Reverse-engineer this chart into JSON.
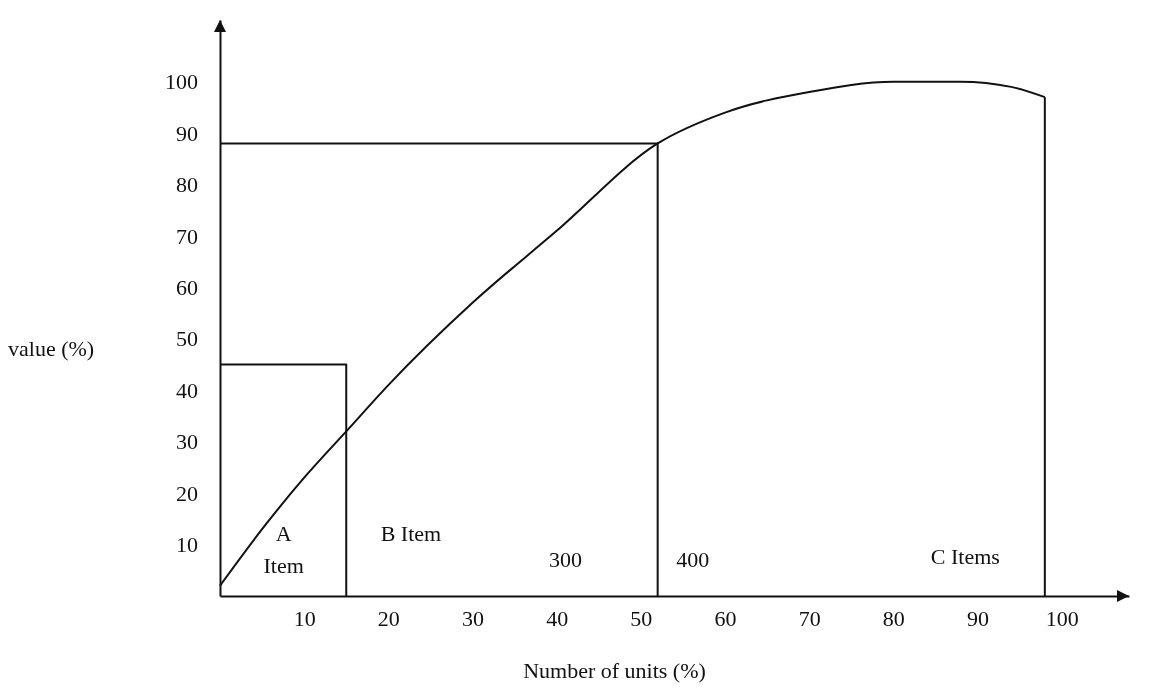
{
  "chart_data": {
    "type": "line",
    "xlabel": "Number of units (%)",
    "ylabel": "value (%)",
    "xlim": [
      0,
      108
    ],
    "ylim": [
      0,
      112
    ],
    "xticks": [
      10,
      20,
      30,
      40,
      50,
      60,
      70,
      80,
      90,
      100
    ],
    "yticks": [
      10,
      20,
      30,
      40,
      50,
      60,
      70,
      80,
      90,
      100
    ],
    "grid": false,
    "marker": "none",
    "line_style": "solid",
    "series": [
      {
        "color": "#111111",
        "x": [
          0,
          5,
          10,
          15,
          20,
          30,
          40,
          52,
          60,
          70,
          80,
          88,
          94,
          98
        ],
        "values": [
          2,
          13,
          23,
          32,
          41,
          57,
          71,
          88,
          94,
          98,
          100,
          100,
          99,
          97
        ]
      },
      {
        "color": "#111111",
        "x": [
          0,
          15,
          15
        ],
        "values": [
          45,
          45,
          0
        ]
      },
      {
        "color": "#111111",
        "x": [
          0,
          52,
          52
        ],
        "values": [
          88,
          88,
          0
        ]
      },
      {
        "color": "#111111",
        "x": [
          98,
          98
        ],
        "values": [
          97,
          0
        ]
      }
    ],
    "annotations": [
      "A",
      "Item",
      "B Item",
      "300",
      "400",
      "C Items"
    ]
  }
}
